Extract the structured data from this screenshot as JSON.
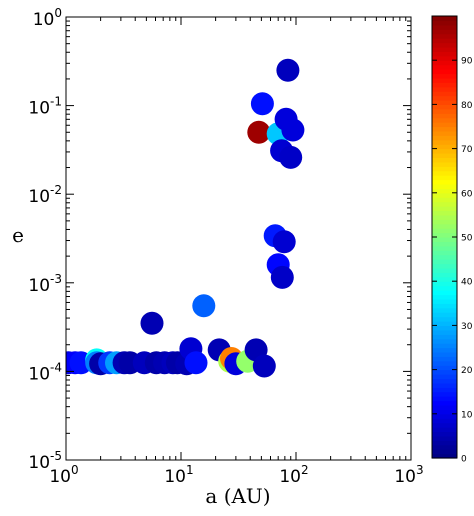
{
  "chart_data": {
    "type": "scatter",
    "xlabel": "a (AU)",
    "ylabel": "e",
    "xscale": "log",
    "yscale": "log",
    "xlim": [
      1,
      1000
    ],
    "ylim": [
      1e-05,
      1
    ],
    "x_ticks": [
      {
        "value": 1,
        "base": "10",
        "exp": "0"
      },
      {
        "value": 10,
        "base": "10",
        "exp": "1"
      },
      {
        "value": 100,
        "base": "10",
        "exp": "2"
      },
      {
        "value": 1000,
        "base": "10",
        "exp": "3"
      }
    ],
    "y_ticks": [
      {
        "value": 1e-05,
        "base": "10",
        "exp": "-5"
      },
      {
        "value": 0.0001,
        "base": "10",
        "exp": "-4"
      },
      {
        "value": 0.001,
        "base": "10",
        "exp": "-3"
      },
      {
        "value": 0.01,
        "base": "10",
        "exp": "-2"
      },
      {
        "value": 0.1,
        "base": "10",
        "exp": "-1"
      },
      {
        "value": 1,
        "base": "10",
        "exp": "0"
      }
    ],
    "grid": false,
    "colorbar": {
      "colormap": "jet",
      "min": 0,
      "max": 100,
      "ticks": [
        0,
        10,
        20,
        30,
        40,
        50,
        60,
        70,
        80,
        90
      ],
      "tick_labels": [
        "0",
        "10",
        "20",
        "30",
        "40",
        "50",
        "60",
        "70",
        "80",
        "90"
      ]
    },
    "points": [
      {
        "x": 1.05,
        "y": 0.000125,
        "c": 10
      },
      {
        "x": 1.2,
        "y": 0.000125,
        "c": 12
      },
      {
        "x": 1.35,
        "y": 0.000125,
        "c": 14
      },
      {
        "x": 1.85,
        "y": 0.000135,
        "c": 38
      },
      {
        "x": 1.85,
        "y": 0.000125,
        "c": 25
      },
      {
        "x": 2.0,
        "y": 0.000122,
        "c": 4
      },
      {
        "x": 2.4,
        "y": 0.000125,
        "c": 18
      },
      {
        "x": 2.75,
        "y": 0.000125,
        "c": 28
      },
      {
        "x": 3.2,
        "y": 0.000125,
        "c": 5
      },
      {
        "x": 3.6,
        "y": 0.000125,
        "c": 4
      },
      {
        "x": 4.8,
        "y": 0.000125,
        "c": 6
      },
      {
        "x": 5.6,
        "y": 0.00035,
        "c": 5
      },
      {
        "x": 6.1,
        "y": 0.000125,
        "c": 4
      },
      {
        "x": 7.2,
        "y": 0.000125,
        "c": 5
      },
      {
        "x": 8.5,
        "y": 0.000125,
        "c": 6
      },
      {
        "x": 9.3,
        "y": 0.000125,
        "c": 4
      },
      {
        "x": 11.2,
        "y": 0.000122,
        "c": 5
      },
      {
        "x": 12.2,
        "y": 0.00018,
        "c": 8
      },
      {
        "x": 13.5,
        "y": 0.000125,
        "c": 14
      },
      {
        "x": 15.8,
        "y": 0.00055,
        "c": 22
      },
      {
        "x": 21.5,
        "y": 0.000175,
        "c": 5
      },
      {
        "x": 26.5,
        "y": 0.00013,
        "c": 55
      },
      {
        "x": 27.5,
        "y": 0.00014,
        "c": 75
      },
      {
        "x": 30.0,
        "y": 0.000122,
        "c": 9
      },
      {
        "x": 38.0,
        "y": 0.00013,
        "c": 52
      },
      {
        "x": 45.0,
        "y": 0.000175,
        "c": 5
      },
      {
        "x": 47.5,
        "y": 0.05,
        "c": 97
      },
      {
        "x": 51.0,
        "y": 0.105,
        "c": 14
      },
      {
        "x": 53.0,
        "y": 0.000115,
        "c": 6
      },
      {
        "x": 66.0,
        "y": 0.0034,
        "c": 15
      },
      {
        "x": 70.0,
        "y": 0.048,
        "c": 32
      },
      {
        "x": 70.0,
        "y": 0.0016,
        "c": 13
      },
      {
        "x": 75.0,
        "y": 0.031,
        "c": 8
      },
      {
        "x": 76.0,
        "y": 0.00115,
        "c": 7
      },
      {
        "x": 79.0,
        "y": 0.0029,
        "c": 8
      },
      {
        "x": 82.0,
        "y": 0.07,
        "c": 9
      },
      {
        "x": 85.0,
        "y": 0.25,
        "c": 6
      },
      {
        "x": 90.0,
        "y": 0.026,
        "c": 7
      },
      {
        "x": 94.0,
        "y": 0.053,
        "c": 9
      }
    ]
  }
}
